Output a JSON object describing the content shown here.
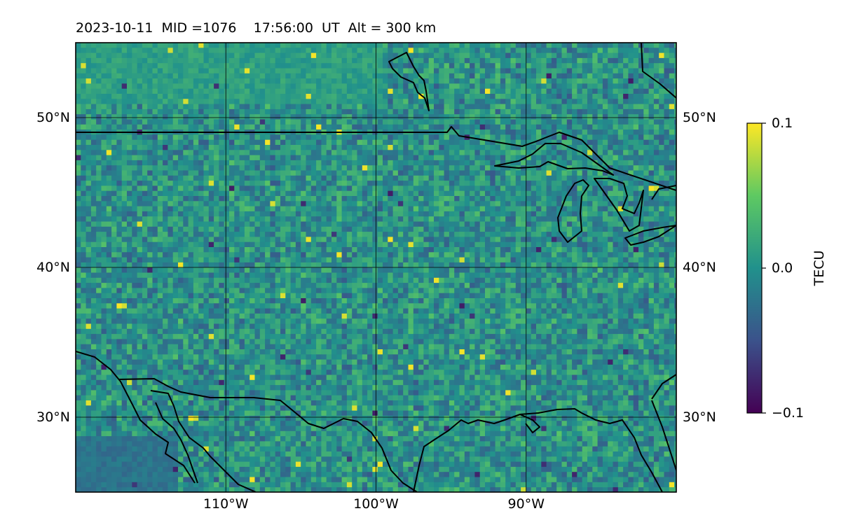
{
  "title": {
    "date": "2023-10-11",
    "mid": "MID =1076",
    "time": "17:56:00  UT",
    "altitude": "Alt = 300 km"
  },
  "map": {
    "lon_range": [
      -120,
      -80
    ],
    "lat_range": [
      25,
      55
    ],
    "lon_ticks": [
      {
        "value": -110,
        "label": "110°W"
      },
      {
        "value": -100,
        "label": "100°W"
      },
      {
        "value": -90,
        "label": "90°W"
      }
    ],
    "lat_ticks_left": [
      {
        "value": 50,
        "label": "50°N"
      },
      {
        "value": 40,
        "label": "40°N"
      },
      {
        "value": 30,
        "label": "30°N"
      }
    ],
    "lat_ticks_right": [
      {
        "value": 50,
        "label": "50°N"
      },
      {
        "value": 40,
        "label": "40°N"
      },
      {
        "value": 30,
        "label": "30°N"
      }
    ],
    "grid": true,
    "field": "TEC perturbation (dTEC) — noisy field roughly between -0.1 and 0.1 TECU"
  },
  "colorbar": {
    "label": "TECU",
    "colormap": "viridis",
    "ticks": [
      {
        "value": 0.1,
        "label": "0.1"
      },
      {
        "value": 0.0,
        "label": "0.0"
      },
      {
        "value": -0.1,
        "label": "−0.1"
      }
    ],
    "range": [
      -0.1,
      0.1
    ]
  },
  "colors": {
    "viridis_stops": [
      "#440154",
      "#3b528b",
      "#21918c",
      "#5ec962",
      "#fde725"
    ],
    "coastline": "#000000",
    "grid": "#000000"
  }
}
